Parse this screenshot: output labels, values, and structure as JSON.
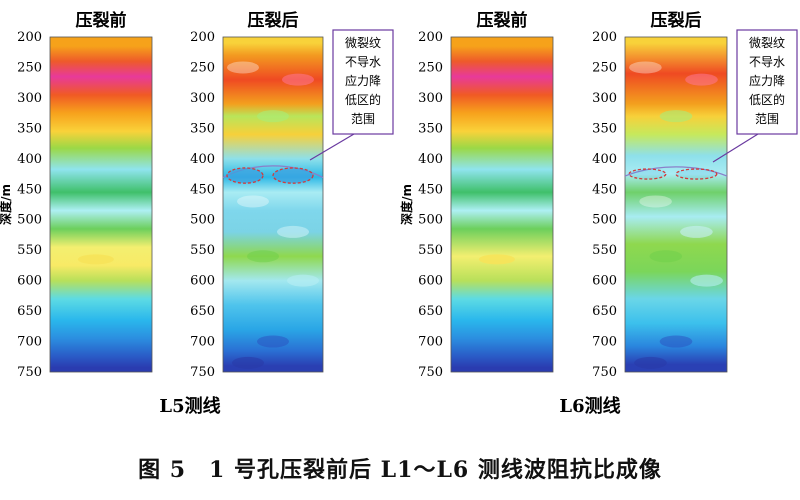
{
  "caption": "图 5　1 号孔压裂前后 L1～L6 测线波阻抗比成像",
  "chart_data": [
    {
      "type": "heatmap",
      "line": "L5测线",
      "panels": [
        {
          "title": "压裂前",
          "ylabel": "深度/m",
          "ylim": [
            200,
            750
          ],
          "yticks": [
            200,
            250,
            300,
            350,
            400,
            450,
            500,
            550,
            600,
            650,
            700,
            750
          ],
          "depth_bands": [
            {
              "from": 200,
              "to": 230,
              "color": "#f6a21a"
            },
            {
              "from": 230,
              "to": 250,
              "color": "#ee5a2a"
            },
            {
              "from": 250,
              "to": 280,
              "color": "#e83a9a"
            },
            {
              "from": 280,
              "to": 310,
              "color": "#f05a24"
            },
            {
              "from": 310,
              "to": 340,
              "color": "#f7a21c"
            },
            {
              "from": 340,
              "to": 370,
              "color": "#f9d23a"
            },
            {
              "from": 370,
              "to": 395,
              "color": "#9bd846"
            },
            {
              "from": 395,
              "to": 440,
              "color": "#8fe4ee"
            },
            {
              "from": 440,
              "to": 470,
              "color": "#3fc06a"
            },
            {
              "from": 470,
              "to": 500,
              "color": "#aef0f4"
            },
            {
              "from": 500,
              "to": 530,
              "color": "#6ccf5c"
            },
            {
              "from": 530,
              "to": 560,
              "color": "#f3ef70"
            },
            {
              "from": 560,
              "to": 590,
              "color": "#f8ea66"
            },
            {
              "from": 590,
              "to": 610,
              "color": "#b8e05a"
            },
            {
              "from": 610,
              "to": 650,
              "color": "#5ddbe4"
            },
            {
              "from": 650,
              "to": 680,
              "color": "#2ab7ec"
            },
            {
              "from": 680,
              "to": 710,
              "color": "#2b8ee0"
            },
            {
              "from": 710,
              "to": 735,
              "color": "#2a5ec8"
            },
            {
              "from": 735,
              "to": 750,
              "color": "#2a3cb0"
            }
          ]
        },
        {
          "title": "压裂后",
          "ylim": [
            200,
            750
          ],
          "yticks": [
            200,
            250,
            300,
            350,
            400,
            450,
            500,
            550,
            600,
            650,
            700,
            750
          ],
          "annotation": "微裂纹不导水应力降低区的范围",
          "annotation_lines": [
            "微裂纹",
            "不导水",
            "应力降",
            "低区的",
            "范围"
          ],
          "zone_depth": [
            415,
            440
          ],
          "depth_bands": [
            {
              "from": 200,
              "to": 220,
              "color": "#f8d23a"
            },
            {
              "from": 220,
              "to": 240,
              "color": "#f39a20"
            },
            {
              "from": 240,
              "to": 300,
              "color": "#ef4a22"
            },
            {
              "from": 300,
              "to": 320,
              "color": "#f3a01e"
            },
            {
              "from": 320,
              "to": 340,
              "color": "#b9e55a"
            },
            {
              "from": 340,
              "to": 380,
              "color": "#f7d03a"
            },
            {
              "from": 380,
              "to": 420,
              "color": "#8ee0ea"
            },
            {
              "from": 420,
              "to": 440,
              "color": "#2db8e6"
            },
            {
              "from": 440,
              "to": 470,
              "color": "#a9ecf3"
            },
            {
              "from": 470,
              "to": 500,
              "color": "#7fd7ec"
            },
            {
              "from": 500,
              "to": 540,
              "color": "#7bd3e6"
            },
            {
              "from": 540,
              "to": 580,
              "color": "#8fd84e"
            },
            {
              "from": 580,
              "to": 620,
              "color": "#a3e8ef"
            },
            {
              "from": 620,
              "to": 660,
              "color": "#4fc4ec"
            },
            {
              "from": 660,
              "to": 700,
              "color": "#2aa6e6"
            },
            {
              "from": 700,
              "to": 730,
              "color": "#2a70d4"
            },
            {
              "from": 730,
              "to": 750,
              "color": "#2a3fb2"
            }
          ]
        }
      ]
    },
    {
      "type": "heatmap",
      "line": "L6测线",
      "panels": [
        {
          "title": "压裂前",
          "ylabel": "深度/m",
          "ylim": [
            200,
            750
          ],
          "yticks": [
            200,
            250,
            300,
            350,
            400,
            450,
            500,
            550,
            600,
            650,
            700,
            750
          ],
          "depth_bands": [
            {
              "from": 200,
              "to": 230,
              "color": "#f6a21a"
            },
            {
              "from": 230,
              "to": 250,
              "color": "#ee5a2a"
            },
            {
              "from": 250,
              "to": 280,
              "color": "#e83a9a"
            },
            {
              "from": 280,
              "to": 310,
              "color": "#f05a24"
            },
            {
              "from": 310,
              "to": 340,
              "color": "#f7a21c"
            },
            {
              "from": 340,
              "to": 370,
              "color": "#f9d23a"
            },
            {
              "from": 370,
              "to": 395,
              "color": "#9bd846"
            },
            {
              "from": 395,
              "to": 440,
              "color": "#8fe4ee"
            },
            {
              "from": 440,
              "to": 470,
              "color": "#3fc06a"
            },
            {
              "from": 470,
              "to": 500,
              "color": "#aef0f4"
            },
            {
              "from": 500,
              "to": 530,
              "color": "#6ccf5c"
            },
            {
              "from": 530,
              "to": 590,
              "color": "#f3ef70"
            },
            {
              "from": 590,
              "to": 610,
              "color": "#b8e05a"
            },
            {
              "from": 610,
              "to": 650,
              "color": "#5ddbe4"
            },
            {
              "from": 650,
              "to": 680,
              "color": "#2ab7ec"
            },
            {
              "from": 680,
              "to": 710,
              "color": "#2b8ee0"
            },
            {
              "from": 710,
              "to": 735,
              "color": "#2a5ec8"
            },
            {
              "from": 735,
              "to": 750,
              "color": "#2a3cb0"
            }
          ]
        },
        {
          "title": "压裂后",
          "ylim": [
            200,
            750
          ],
          "yticks": [
            200,
            250,
            300,
            350,
            400,
            450,
            500,
            550,
            600,
            650,
            700,
            750
          ],
          "annotation": "微裂纹不导水应力降低区的范围",
          "annotation_lines": [
            "微裂纹",
            "不导水",
            "应力降",
            "低区的",
            "范围"
          ],
          "zone_depth": [
            418,
            432
          ],
          "depth_bands": [
            {
              "from": 200,
              "to": 220,
              "color": "#f8d23a"
            },
            {
              "from": 220,
              "to": 300,
              "color": "#ef4a22"
            },
            {
              "from": 300,
              "to": 320,
              "color": "#f3a01e"
            },
            {
              "from": 320,
              "to": 340,
              "color": "#f7d03a"
            },
            {
              "from": 340,
              "to": 380,
              "color": "#c6e95c"
            },
            {
              "from": 380,
              "to": 410,
              "color": "#8ee0ea"
            },
            {
              "from": 410,
              "to": 440,
              "color": "#a9ecf3"
            },
            {
              "from": 440,
              "to": 470,
              "color": "#6fd06a"
            },
            {
              "from": 470,
              "to": 520,
              "color": "#a8ecf2"
            },
            {
              "from": 520,
              "to": 560,
              "color": "#8fd84e"
            },
            {
              "from": 560,
              "to": 610,
              "color": "#7bd65a"
            },
            {
              "from": 610,
              "to": 650,
              "color": "#6ad6e8"
            },
            {
              "from": 650,
              "to": 690,
              "color": "#3cc0ec"
            },
            {
              "from": 690,
              "to": 725,
              "color": "#2a86de"
            },
            {
              "from": 725,
              "to": 750,
              "color": "#2a40b4"
            }
          ]
        }
      ]
    }
  ]
}
